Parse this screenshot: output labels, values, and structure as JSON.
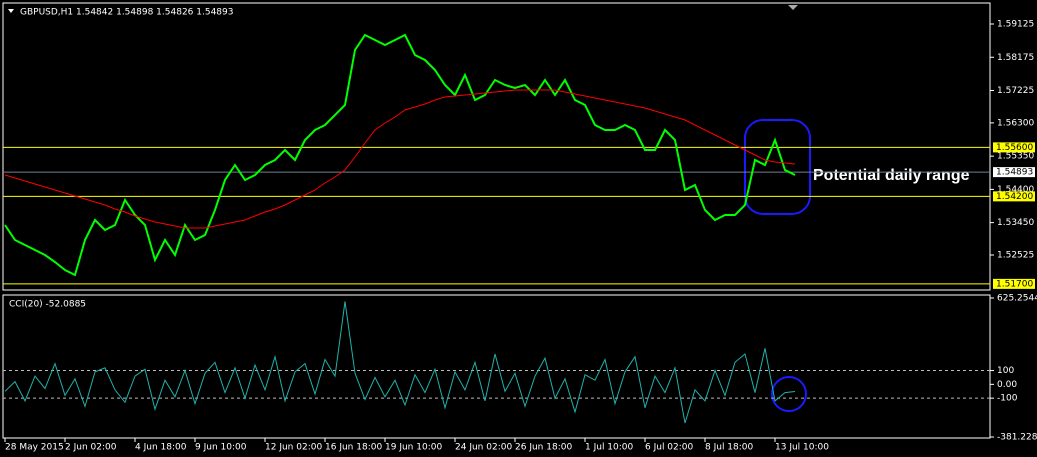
{
  "chart_data": [
    {
      "type": "line",
      "title": "GBPUSD,H1 1.54842 1.54898 1.54826 1.54893",
      "annotation": "Potential daily range",
      "categories": [
        "28 May 2015",
        null,
        null,
        null,
        null,
        null,
        "2 Jun 02:00",
        null,
        null,
        null,
        null,
        null,
        null,
        "4 Jun 18:00",
        null,
        null,
        null,
        null,
        null,
        "9 Jun 10:00",
        null,
        null,
        null,
        null,
        null,
        null,
        "12 Jun 02:00",
        null,
        null,
        null,
        null,
        null,
        "16 Jun 18:00",
        null,
        null,
        null,
        null,
        null,
        "19 Jun 10:00",
        null,
        null,
        null,
        null,
        null,
        null,
        "24 Jun 02:00",
        null,
        null,
        null,
        null,
        null,
        "26 Jun 18:00",
        null,
        null,
        null,
        null,
        null,
        null,
        "1 Jul 10:00",
        null,
        null,
        null,
        null,
        null,
        "6 Jul 02:00",
        null,
        null,
        null,
        null,
        null,
        "8 Jul 18:00",
        null,
        null,
        null,
        null,
        null,
        null,
        "13 Jul 10:00",
        null,
        null
      ],
      "series": [
        {
          "color": "#00ff00",
          "values": [
            1.53382,
            1.52954,
            1.52811,
            1.52668,
            1.52525,
            1.52325,
            1.52096,
            1.51954,
            1.52954,
            1.53525,
            1.53239,
            1.53382,
            1.54096,
            1.53668,
            1.53382,
            1.52382,
            1.52954,
            1.52525,
            1.53382,
            1.52954,
            1.53096,
            1.53811,
            1.54668,
            1.55096,
            1.54668,
            1.54811,
            1.55096,
            1.55239,
            1.55525,
            1.55239,
            1.55811,
            1.56096,
            1.56239,
            1.56525,
            1.56811,
            1.58382,
            1.58811,
            1.58668,
            1.58525,
            1.58668,
            1.58811,
            1.58239,
            1.58096,
            1.57811,
            1.57382,
            1.57096,
            1.57668,
            1.56954,
            1.57096,
            1.57525,
            1.57382,
            1.57296,
            1.57382,
            1.57096,
            1.57525,
            1.57096,
            1.57525,
            1.56954,
            1.56811,
            1.56239,
            1.56096,
            1.56096,
            1.56239,
            1.56096,
            1.55525,
            1.55525,
            1.56096,
            1.55811,
            1.54382,
            1.54525,
            1.53811,
            1.53525,
            1.53668,
            1.53668,
            1.53954,
            1.55239,
            1.55096,
            1.55811,
            1.54954,
            1.54811
          ]
        },
        {
          "color": "#ff0000",
          "values": [
            1.54811,
            1.54725,
            1.54639,
            1.54554,
            1.54468,
            1.54382,
            1.54296,
            1.54211,
            1.54125,
            1.54039,
            1.53954,
            1.53839,
            1.53754,
            1.53639,
            1.53554,
            1.53468,
            1.53411,
            1.53354,
            1.53296,
            1.53296,
            1.53296,
            1.53354,
            1.53411,
            1.53468,
            1.53525,
            1.53639,
            1.53754,
            1.53839,
            1.53954,
            1.54096,
            1.54239,
            1.54382,
            1.54582,
            1.54754,
            1.54954,
            1.55325,
            1.55725,
            1.56096,
            1.56296,
            1.56468,
            1.56668,
            1.56754,
            1.56839,
            1.56954,
            1.57039,
            1.57068,
            1.57096,
            1.57125,
            1.57154,
            1.57182,
            1.57211,
            1.57239,
            1.57239,
            1.57239,
            1.57239,
            1.57239,
            1.57182,
            1.57125,
            1.57068,
            1.57011,
            1.56954,
            1.56896,
            1.56839,
            1.56782,
            1.56725,
            1.56639,
            1.56554,
            1.56468,
            1.56382,
            1.56239,
            1.56096,
            1.55954,
            1.55811,
            1.55668,
            1.55525,
            1.55382,
            1.55239,
            1.55182,
            1.55154,
            1.55125
          ]
        }
      ],
      "ylim": [
        1.51525,
        1.59668
      ],
      "yticks": [
        1.59125,
        1.58175,
        1.57225,
        {
          "value": 1.563,
          "label": "1.56300"
        },
        {
          "value": 1.5535,
          "label": "1.55350"
        },
        {
          "value": 1.544,
          "label": "1.54400"
        },
        {
          "value": 1.5345,
          "label": "1.53450"
        },
        1.52525
      ],
      "hlines": [
        {
          "value": 1.556,
          "label": "1.55600",
          "color": "#ffff00"
        },
        {
          "value": 1.542,
          "label": "1.54200",
          "color": "#ffff00"
        },
        {
          "value": 1.517,
          "label": "1.51700",
          "color": "#ffff00"
        },
        {
          "value": 1.54893,
          "label": "1.54893",
          "color": "#ffffff"
        }
      ]
    },
    {
      "type": "line",
      "title": "CCI(20) -52.0885",
      "series": [
        {
          "color": "#20b2aa",
          "values": [
            -50,
            20,
            -120,
            60,
            -30,
            150,
            -80,
            40,
            -160,
            90,
            120,
            -40,
            -130,
            60,
            110,
            -180,
            30,
            -90,
            100,
            -140,
            80,
            160,
            -60,
            120,
            -100,
            140,
            -40,
            200,
            -120,
            90,
            150,
            -70,
            180,
            60,
            600,
            80,
            -110,
            50,
            -90,
            30,
            -150,
            70,
            -60,
            110,
            -170,
            90,
            -40,
            160,
            -120,
            220,
            -50,
            80,
            -160,
            60,
            190,
            -100,
            40,
            -200,
            70,
            30,
            180,
            -140,
            90,
            200,
            -170,
            60,
            -60,
            120,
            -280,
            -40,
            -120,
            100,
            -80,
            160,
            220,
            -60,
            260,
            -120,
            -60,
            -52.0885
          ]
        }
      ],
      "ylim": [
        -381.2285,
        625.2544
      ],
      "yticks": [
        625.2544,
        100,
        {
          "value": 0,
          "label": "0.00"
        },
        -100,
        -381.2285
      ],
      "levels": [
        100,
        -100
      ]
    }
  ]
}
